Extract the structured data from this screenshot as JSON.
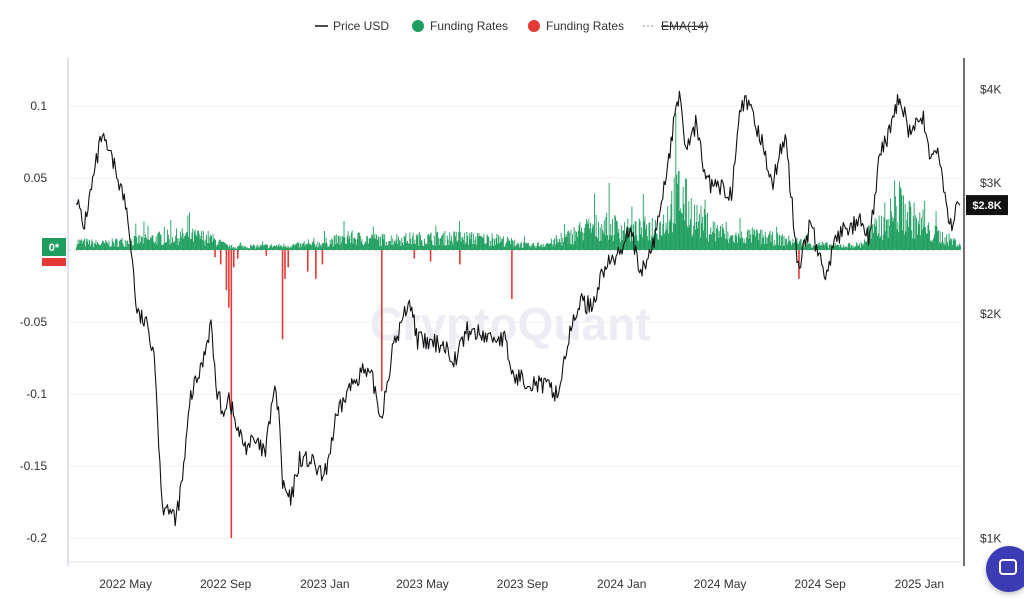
{
  "chart_data": {
    "type": "bar+line",
    "legend": [
      {
        "label": "Price USD",
        "color": "#222222",
        "kind": "line"
      },
      {
        "label": "Funding Rates",
        "color": "#1e9e5e",
        "kind": "dot"
      },
      {
        "label": "Funding Rates",
        "color": "#e53935",
        "kind": "dot"
      },
      {
        "label": "EMA(14)",
        "color": "#999999",
        "kind": "dashed",
        "disabled": true
      }
    ],
    "watermark": "CryptoQuant",
    "left_axis": {
      "ticks": [
        "0.1",
        "0.05",
        "0*",
        "-0.05",
        "-0.1",
        "-0.15",
        "-0.2"
      ],
      "range": [
        -0.2,
        0.1
      ]
    },
    "right_axis": {
      "scale": "log",
      "ticks": [
        "$4K",
        "$3K",
        "$2K",
        "$1K"
      ],
      "values": [
        4000,
        3000,
        2000,
        1000
      ],
      "range": [
        950,
        4250
      ]
    },
    "current_price_label": "$2.8K",
    "current_price": 2800,
    "x_axis": {
      "ticks": [
        "2022 May",
        "2022 Sep",
        "2023 Jan",
        "2023 May",
        "2023 Sep",
        "2024 Jan",
        "2024 May",
        "2024 Sep",
        "2025 Jan"
      ],
      "range": [
        "2022-03-01",
        "2025-02-20"
      ]
    },
    "price_series": [
      [
        "2022-03-01",
        2900
      ],
      [
        "2022-03-10",
        2600
      ],
      [
        "2022-03-20",
        2950
      ],
      [
        "2022-04-01",
        3450
      ],
      [
        "2022-04-10",
        3300
      ],
      [
        "2022-04-20",
        3100
      ],
      [
        "2022-05-01",
        2800
      ],
      [
        "2022-05-08",
        2450
      ],
      [
        "2022-05-15",
        2000
      ],
      [
        "2022-05-25",
        1950
      ],
      [
        "2022-06-05",
        1800
      ],
      [
        "2022-06-15",
        1100
      ],
      [
        "2022-06-20",
        1120
      ],
      [
        "2022-07-01",
        1050
      ],
      [
        "2022-07-10",
        1200
      ],
      [
        "2022-07-20",
        1550
      ],
      [
        "2022-08-01",
        1680
      ],
      [
        "2022-08-14",
        1950
      ],
      [
        "2022-08-20",
        1600
      ],
      [
        "2022-08-28",
        1480
      ],
      [
        "2022-09-05",
        1550
      ],
      [
        "2022-09-15",
        1400
      ],
      [
        "2022-09-25",
        1330
      ],
      [
        "2022-10-05",
        1350
      ],
      [
        "2022-10-20",
        1300
      ],
      [
        "2022-10-30",
        1580
      ],
      [
        "2022-11-05",
        1500
      ],
      [
        "2022-11-10",
        1180
      ],
      [
        "2022-11-20",
        1120
      ],
      [
        "2022-12-01",
        1280
      ],
      [
        "2022-12-15",
        1270
      ],
      [
        "2022-12-31",
        1200
      ],
      [
        "2023-01-14",
        1430
      ],
      [
        "2023-01-28",
        1570
      ],
      [
        "2023-02-15",
        1680
      ],
      [
        "2023-03-01",
        1630
      ],
      [
        "2023-03-11",
        1450
      ],
      [
        "2023-03-25",
        1780
      ],
      [
        "2023-04-15",
        2100
      ],
      [
        "2023-04-25",
        1850
      ],
      [
        "2023-05-10",
        1820
      ],
      [
        "2023-05-25",
        1830
      ],
      [
        "2023-06-10",
        1740
      ],
      [
        "2023-06-25",
        1900
      ],
      [
        "2023-07-10",
        1880
      ],
      [
        "2023-07-25",
        1860
      ],
      [
        "2023-08-10",
        1850
      ],
      [
        "2023-08-20",
        1650
      ],
      [
        "2023-09-01",
        1640
      ],
      [
        "2023-09-15",
        1620
      ],
      [
        "2023-10-05",
        1590
      ],
      [
        "2023-10-15",
        1560
      ],
      [
        "2023-10-25",
        1800
      ],
      [
        "2023-11-10",
        2080
      ],
      [
        "2023-11-25",
        2050
      ],
      [
        "2023-12-10",
        2300
      ],
      [
        "2023-12-28",
        2400
      ],
      [
        "2024-01-12",
        2650
      ],
      [
        "2024-01-23",
        2230
      ],
      [
        "2024-02-10",
        2500
      ],
      [
        "2024-02-25",
        3100
      ],
      [
        "2024-03-12",
        4000
      ],
      [
        "2024-03-20",
        3300
      ],
      [
        "2024-04-01",
        3600
      ],
      [
        "2024-04-15",
        3000
      ],
      [
        "2024-05-01",
        2950
      ],
      [
        "2024-05-15",
        2900
      ],
      [
        "2024-05-25",
        3850
      ],
      [
        "2024-06-05",
        3800
      ],
      [
        "2024-06-20",
        3450
      ],
      [
        "2024-07-05",
        3000
      ],
      [
        "2024-07-20",
        3500
      ],
      [
        "2024-08-05",
        2300
      ],
      [
        "2024-08-20",
        2650
      ],
      [
        "2024-09-06",
        2250
      ],
      [
        "2024-09-20",
        2500
      ],
      [
        "2024-10-01",
        2600
      ],
      [
        "2024-10-20",
        2650
      ],
      [
        "2024-11-01",
        2500
      ],
      [
        "2024-11-12",
        3200
      ],
      [
        "2024-11-28",
        3600
      ],
      [
        "2024-12-08",
        3950
      ],
      [
        "2024-12-20",
        3500
      ],
      [
        "2025-01-06",
        3650
      ],
      [
        "2025-01-15",
        3250
      ],
      [
        "2025-01-25",
        3300
      ],
      [
        "2025-02-03",
        2750
      ],
      [
        "2025-02-10",
        2650
      ],
      [
        "2025-02-18",
        2800
      ]
    ],
    "funding_envelope": [
      [
        "2022-03-01",
        0.008
      ],
      [
        "2022-04-01",
        0.006
      ],
      [
        "2022-05-20",
        0.01
      ],
      [
        "2022-07-15",
        0.014
      ],
      [
        "2022-08-10",
        0.012
      ],
      [
        "2022-09-05",
        0.003
      ],
      [
        "2022-11-01",
        0.004
      ],
      [
        "2022-12-15",
        0.005
      ],
      [
        "2023-02-01",
        0.012
      ],
      [
        "2023-03-10",
        0.01
      ],
      [
        "2023-04-20",
        0.011
      ],
      [
        "2023-06-15",
        0.012
      ],
      [
        "2023-08-01",
        0.01
      ],
      [
        "2023-09-10",
        0.004
      ],
      [
        "2023-10-15",
        0.008
      ],
      [
        "2023-11-15",
        0.02
      ],
      [
        "2023-12-15",
        0.024
      ],
      [
        "2024-01-15",
        0.018
      ],
      [
        "2024-02-20",
        0.025
      ],
      [
        "2024-03-10",
        0.055
      ],
      [
        "2024-04-01",
        0.03
      ],
      [
        "2024-05-10",
        0.012
      ],
      [
        "2024-06-10",
        0.014
      ],
      [
        "2024-07-15",
        0.01
      ],
      [
        "2024-08-20",
        0.006
      ],
      [
        "2024-09-20",
        0.004
      ],
      [
        "2024-10-20",
        0.005
      ],
      [
        "2024-11-20",
        0.03
      ],
      [
        "2024-12-10",
        0.04
      ],
      [
        "2025-01-10",
        0.018
      ],
      [
        "2025-02-20",
        0.006
      ]
    ],
    "negative_spikes": [
      [
        "2022-08-18",
        -0.005
      ],
      [
        "2022-08-25",
        -0.01
      ],
      [
        "2022-09-01",
        -0.028
      ],
      [
        "2022-09-04",
        -0.04
      ],
      [
        "2022-09-07",
        -0.2
      ],
      [
        "2022-09-10",
        -0.012
      ],
      [
        "2022-09-15",
        -0.006
      ],
      [
        "2022-10-20",
        -0.004
      ],
      [
        "2022-11-09",
        -0.062
      ],
      [
        "2022-11-12",
        -0.02
      ],
      [
        "2022-11-16",
        -0.012
      ],
      [
        "2022-12-10",
        -0.015
      ],
      [
        "2022-12-20",
        -0.02
      ],
      [
        "2022-12-28",
        -0.01
      ],
      [
        "2023-03-11",
        -0.098
      ],
      [
        "2023-04-20",
        -0.006
      ],
      [
        "2023-05-10",
        -0.008
      ],
      [
        "2023-06-15",
        -0.01
      ],
      [
        "2023-08-18",
        -0.034
      ],
      [
        "2024-08-05",
        -0.02
      ]
    ]
  }
}
